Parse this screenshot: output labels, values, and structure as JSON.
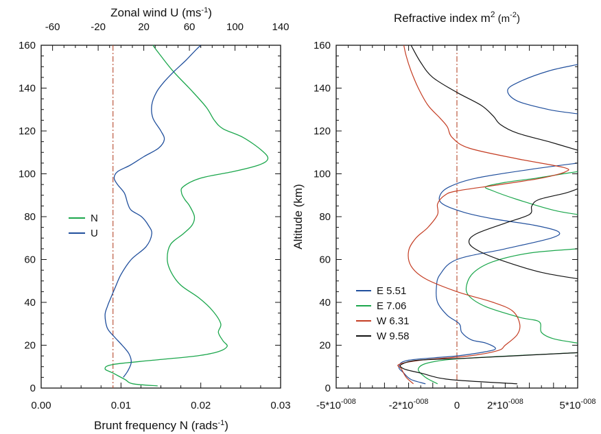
{
  "chart_data": [
    {
      "type": "line",
      "xlabel_bottom": "Brunt frequency N (rads",
      "xlabel_bottom_sup": "-1",
      "xlabel_bottom_end": ")",
      "xlabel_top": "Zonal wind U (ms",
      "xlabel_top_sup": "-1",
      "xlabel_top_end": ")",
      "xlim_bottom": [
        0,
        0.03
      ],
      "xlim_top": [
        -70,
        140
      ],
      "ylim": [
        0,
        160
      ],
      "x_bottom_ticks": [
        0,
        0.01,
        0.02,
        0.03
      ],
      "x_bottom_tick_labels": [
        "0.00",
        "0.01",
        "0.02",
        "0.03"
      ],
      "x_top_ticks": [
        -60,
        -20,
        20,
        60,
        100,
        140
      ],
      "x_top_tick_labels": [
        "-60",
        "-20",
        "20",
        "60",
        "100",
        "140"
      ],
      "y_ticks": [
        0,
        20,
        40,
        60,
        80,
        100,
        120,
        140,
        160
      ],
      "y_tick_labels": [
        "0",
        "20",
        "40",
        "60",
        "80",
        "100",
        "120",
        "140",
        "160"
      ],
      "reference_line": {
        "axis": "bottom",
        "x": 0.009,
        "color": "#b5472b",
        "style": "dash-dot"
      },
      "legend": {
        "position": "left-middle",
        "entries": [
          {
            "label": "N",
            "color": "#1aa64b"
          },
          {
            "label": "U",
            "color": "#1f4e9c"
          }
        ]
      },
      "series": [
        {
          "name": "N",
          "axis": "bottom",
          "color": "#1aa64b",
          "points": [
            [
              0.0146,
              1
            ],
            [
              0.0115,
              2
            ],
            [
              0.0105,
              4
            ],
            [
              0.009,
              7
            ],
            [
              0.008,
              9
            ],
            [
              0.009,
              11
            ],
            [
              0.014,
              13
            ],
            [
              0.0195,
              15
            ],
            [
              0.0222,
              17
            ],
            [
              0.0233,
              19.5
            ],
            [
              0.0228,
              22
            ],
            [
              0.0222,
              26
            ],
            [
              0.0225,
              30
            ],
            [
              0.0215,
              36
            ],
            [
              0.0198,
              42
            ],
            [
              0.0175,
              48
            ],
            [
              0.0163,
              54
            ],
            [
              0.0158,
              60
            ],
            [
              0.0162,
              67
            ],
            [
              0.0178,
              72
            ],
            [
              0.0189,
              76
            ],
            [
              0.0192,
              80
            ],
            [
              0.0186,
              85
            ],
            [
              0.018,
              88
            ],
            [
              0.0176,
              91
            ],
            [
              0.0178,
              94
            ],
            [
              0.02,
              98
            ],
            [
              0.024,
              101
            ],
            [
              0.0272,
              104
            ],
            [
              0.0284,
              107
            ],
            [
              0.0276,
              111
            ],
            [
              0.0253,
              117
            ],
            [
              0.0228,
              121
            ],
            [
              0.0217,
              125
            ],
            [
              0.0207,
              131
            ],
            [
              0.0188,
              139
            ],
            [
              0.0165,
              148
            ],
            [
              0.0148,
              156
            ],
            [
              0.014,
              160
            ]
          ]
        },
        {
          "name": "U",
          "axis": "top",
          "color": "#1f4e9c",
          "points": [
            [
              2,
              5
            ],
            [
              6,
              8
            ],
            [
              9,
              12
            ],
            [
              7,
              16
            ],
            [
              1,
              20
            ],
            [
              -6,
              24
            ],
            [
              -12,
              28
            ],
            [
              -14,
              34
            ],
            [
              -12,
              38
            ],
            [
              -9,
              42
            ],
            [
              -5,
              47
            ],
            [
              0,
              53
            ],
            [
              9,
              60
            ],
            [
              22,
              66
            ],
            [
              27,
              72
            ],
            [
              24,
              76
            ],
            [
              18,
              80
            ],
            [
              9,
              83
            ],
            [
              6,
              86
            ],
            [
              3,
              91
            ],
            [
              -3,
              95
            ],
            [
              -6,
              98
            ],
            [
              -3,
              101
            ],
            [
              8,
              104
            ],
            [
              20,
              108
            ],
            [
              33,
              112
            ],
            [
              38,
              116
            ],
            [
              35,
              120
            ],
            [
              28,
              126
            ],
            [
              27,
              132
            ],
            [
              31,
              138
            ],
            [
              38,
              143
            ],
            [
              47,
              148
            ],
            [
              57,
              153
            ],
            [
              66,
              158
            ],
            [
              70,
              160
            ]
          ]
        }
      ]
    },
    {
      "type": "line",
      "title": "Refractive index m",
      "title_sup": "2",
      "title_unit": " (m",
      "title_unit_sup": "-2",
      "title_unit_end": ")",
      "ylabel": "Altitude (km)",
      "xlim": [
        -5e-08,
        5e-08
      ],
      "ylim": [
        0,
        160
      ],
      "x_ticks": [
        -5e-08,
        -2e-08,
        0,
        2e-08,
        5e-08
      ],
      "x_tick_labels": [
        {
          "base": "-5*10",
          "exp": "-008"
        },
        {
          "base": "-2*10",
          "exp": "-008"
        },
        {
          "base": "0",
          "exp": ""
        },
        {
          "base": "2*10",
          "exp": "-008"
        },
        {
          "base": "5*10",
          "exp": "-008"
        }
      ],
      "y_ticks": [
        0,
        20,
        40,
        60,
        80,
        100,
        120,
        140,
        160
      ],
      "y_tick_labels": [
        "0",
        "20",
        "40",
        "60",
        "80",
        "100",
        "120",
        "140",
        "160"
      ],
      "reference_line": {
        "x": 0,
        "color": "#b5472b",
        "style": "dash-dot"
      },
      "legend": {
        "position": "bottom-left",
        "entries": [
          {
            "label": "E 5.51",
            "color": "#1f4e9c"
          },
          {
            "label": "E 7.06",
            "color": "#1aa64b"
          },
          {
            "label": "W 6.31",
            "color": "#c43c22"
          },
          {
            "label": "W 9.58",
            "color": "#111111"
          }
        ]
      },
      "series": [
        {
          "name": "E 5.51",
          "color": "#1f4e9c",
          "segments": [
            [
              [
                -1.3e-08,
                2
              ],
              [
                -1.9e-08,
                4
              ],
              [
                -2.2e-08,
                7
              ],
              [
                -2.4e-08,
                10
              ],
              [
                -2e-08,
                13
              ],
              [
                0.0,
                15
              ],
              [
                1.2e-08,
                17
              ],
              [
                1.6e-08,
                18.5
              ],
              [
                1.2e-08,
                21
              ],
              [
                6e-09,
                22.5
              ],
              [
                2e-09,
                26
              ],
              [
                1e-09,
                30
              ],
              [
                -4e-09,
                34
              ],
              [
                -8e-09,
                40
              ],
              [
                -8.5e-09,
                47
              ],
              [
                -7e-09,
                53
              ],
              [
                0.0,
                60
              ],
              [
                2e-08,
                65
              ],
              [
                3.9e-08,
                70
              ],
              [
                4.2e-08,
                73
              ],
              [
                3.2e-08,
                76
              ],
              [
                1.5e-08,
                79
              ],
              [
                3e-09,
                82
              ],
              [
                -6e-09,
                86
              ],
              [
                -7e-09,
                90
              ],
              [
                -3e-09,
                94
              ],
              [
                8e-09,
                98
              ],
              [
                3e-08,
                102
              ],
              [
                5e-08,
                105
              ]
            ],
            [
              [
                5e-08,
                151
              ],
              [
                3.8e-08,
                148
              ],
              [
                2.6e-08,
                143
              ],
              [
                2.1e-08,
                139
              ],
              [
                2.5e-08,
                134
              ],
              [
                3.8e-08,
                130
              ],
              [
                5e-08,
                128
              ]
            ]
          ]
        },
        {
          "name": "E 7.06",
          "color": "#1aa64b",
          "segments": [
            [
              [
                -8e-09,
                2
              ],
              [
                -1.3e-08,
                5
              ],
              [
                -1.6e-08,
                9
              ],
              [
                -1.1e-08,
                12
              ],
              [
                5e-09,
                14
              ],
              [
                5e-08,
                16.5
              ]
            ],
            [
              [
                5e-08,
                21
              ],
              [
                4e-08,
                23
              ],
              [
                3.5e-08,
                26
              ],
              [
                3.4e-08,
                31
              ],
              [
                2.6e-08,
                33
              ],
              [
                1.2e-08,
                38
              ],
              [
                5e-09,
                43
              ],
              [
                4e-09,
                48
              ],
              [
                7e-09,
                54
              ],
              [
                1.5e-08,
                59
              ],
              [
                3e-08,
                63
              ],
              [
                5e-08,
                65
              ]
            ],
            [
              [
                5e-08,
                81
              ],
              [
                4e-08,
                83
              ],
              [
                2.5e-08,
                88
              ],
              [
                1.5e-08,
                92
              ],
              [
                1.2e-08,
                94
              ],
              [
                2e-08,
                96
              ],
              [
                3.3e-08,
                98
              ],
              [
                4.4e-08,
                100
              ],
              [
                5e-08,
                101
              ]
            ]
          ]
        },
        {
          "name": "W 6.31",
          "color": "#c43c22",
          "segments": [
            [
              [
                -1.8e-08,
                2
              ],
              [
                -2.1e-08,
                5
              ],
              [
                -2.3e-08,
                9
              ],
              [
                -2.4e-08,
                11
              ],
              [
                -1.5e-08,
                13
              ],
              [
                5e-09,
                15
              ],
              [
                1.7e-08,
                17.5
              ],
              [
                2e-08,
                20
              ],
              [
                2.5e-08,
                25
              ],
              [
                2.6e-08,
                30
              ],
              [
                2.3e-08,
                36
              ],
              [
                1.5e-08,
                40
              ],
              [
                0.0,
                45
              ],
              [
                -1.3e-08,
                51
              ],
              [
                -1.9e-08,
                57
              ],
              [
                -2e-08,
                64
              ],
              [
                -1.7e-08,
                70
              ],
              [
                -1.2e-08,
                75
              ],
              [
                -8e-09,
                81
              ],
              [
                -8e-09,
                86
              ],
              [
                -5e-09,
                90
              ],
              [
                0.0,
                92
              ],
              [
                1.8e-08,
                95
              ],
              [
                3.5e-08,
                98
              ],
              [
                4.5e-08,
                101
              ],
              [
                4.4e-08,
                103
              ],
              [
                2.5e-08,
                107
              ],
              [
                5e-09,
                112
              ],
              [
                -2e-09,
                117
              ],
              [
                -4e-09,
                122
              ],
              [
                -7e-09,
                126
              ],
              [
                -1.2e-08,
                132
              ],
              [
                -1.6e-08,
                140
              ],
              [
                -1.9e-08,
                148
              ],
              [
                -2.1e-08,
                155
              ],
              [
                -2.2e-08,
                160
              ]
            ]
          ]
        },
        {
          "name": "W 9.58",
          "color": "#111111",
          "segments": [
            [
              [
                2.5e-08,
                2
              ],
              [
                -3e-09,
                4
              ],
              [
                -1.5e-08,
                7
              ],
              [
                -2.2e-08,
                9
              ],
              [
                -2.3e-08,
                11
              ],
              [
                -1.6e-08,
                13
              ],
              [
                5e-09,
                14
              ],
              [
                5e-08,
                16.5
              ]
            ],
            [
              [
                5e-08,
                51
              ],
              [
                3.5e-08,
                54
              ],
              [
                2e-08,
                59
              ],
              [
                9e-09,
                64
              ],
              [
                5e-09,
                68
              ],
              [
                8e-09,
                72
              ],
              [
                2e-08,
                77
              ],
              [
                3e-08,
                81
              ],
              [
                3.1e-08,
                85
              ],
              [
                3.4e-08,
                88
              ],
              [
                4.5e-08,
                91
              ],
              [
                5e-08,
                93
              ]
            ],
            [
              [
                5e-08,
                111
              ],
              [
                3.8e-08,
                115
              ],
              [
                2.5e-08,
                119
              ],
              [
                1.8e-08,
                123
              ],
              [
                1.5e-08,
                127
              ],
              [
                1e-08,
                132
              ],
              [
                0.0,
                138
              ],
              [
                -1e-08,
                145
              ],
              [
                -1.5e-08,
                152
              ],
              [
                -1.9e-08,
                160
              ]
            ]
          ]
        }
      ]
    }
  ]
}
